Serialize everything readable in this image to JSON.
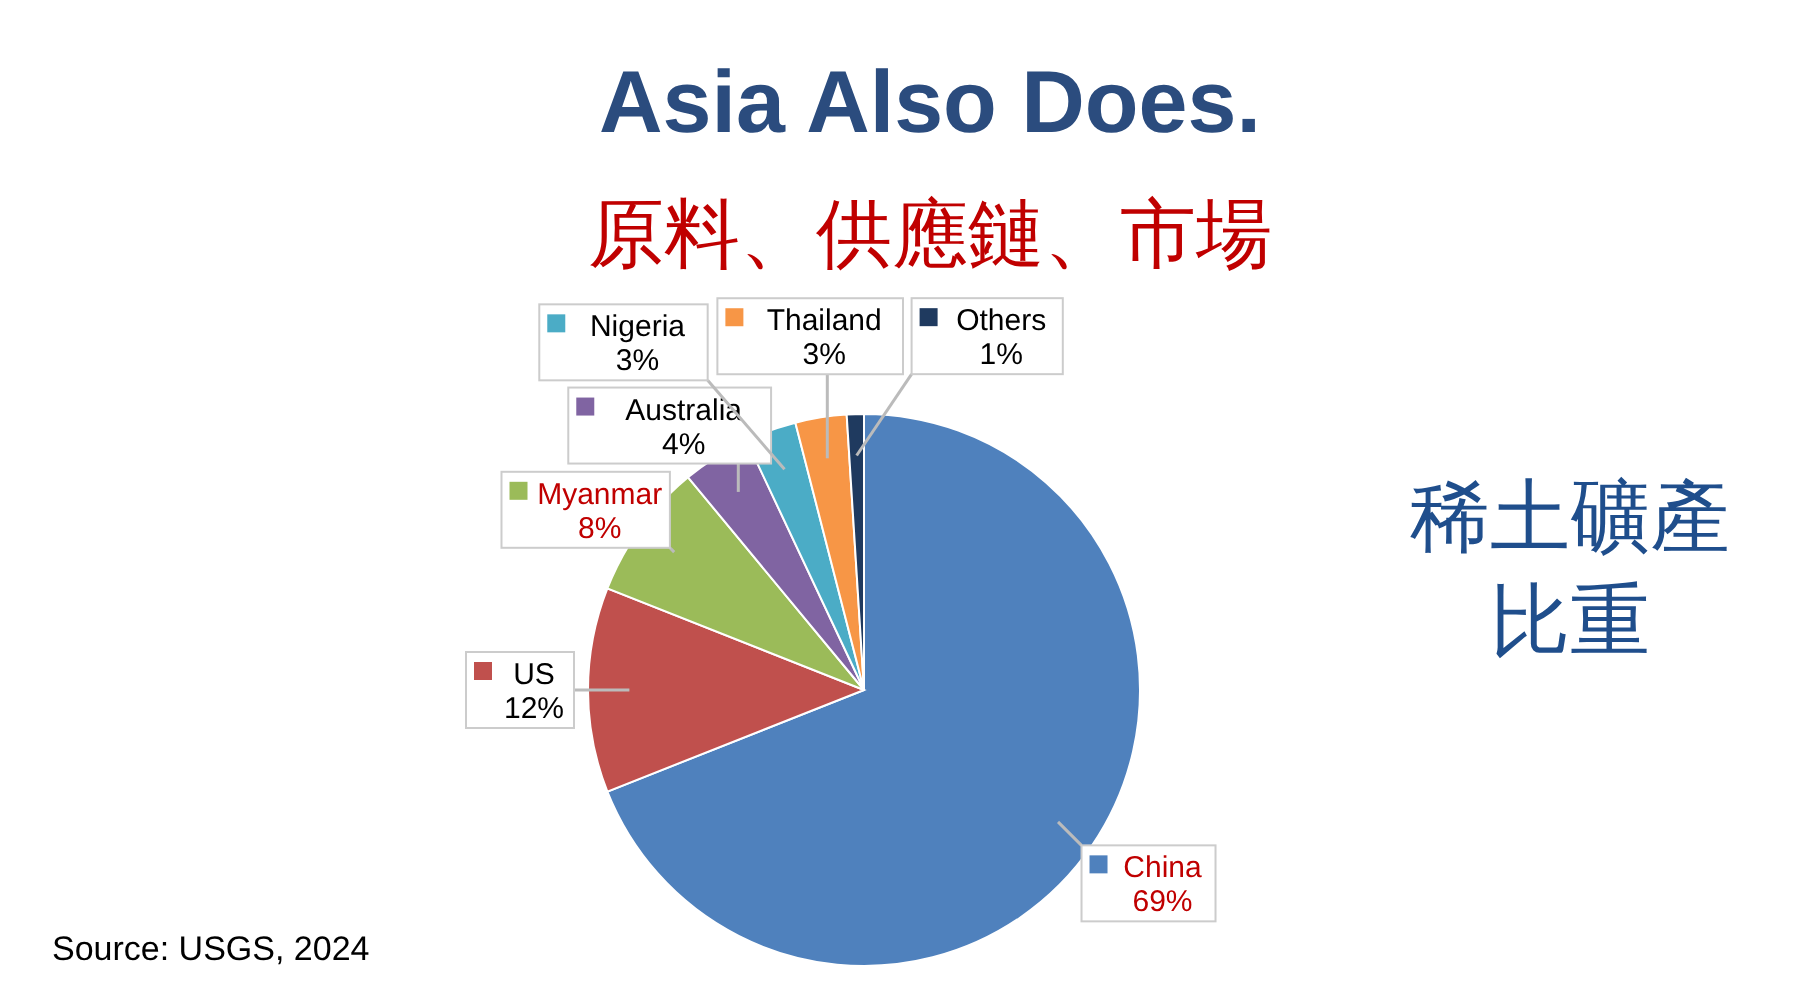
{
  "chart_data": {
    "type": "pie",
    "title": "Asia Also Does.",
    "subtitle": "原料、供應鏈、市場",
    "categories": [
      "China",
      "US",
      "Myanmar",
      "Australia",
      "Nigeria",
      "Thailand",
      "Others"
    ],
    "values": [
      69,
      12,
      8,
      4,
      3,
      3,
      1
    ],
    "colors": [
      "#4f81bd",
      "#c0504d",
      "#9bbb59",
      "#8064a2",
      "#4bacc6",
      "#f79646",
      "#1f3a5f"
    ],
    "data_labels": true,
    "legend": "left",
    "value_labels": [
      "69%",
      "12%",
      "8%",
      "4%",
      "3%",
      "3%",
      "1%"
    ],
    "annotations": [
      "稀土礦產",
      "比重",
      "Source: USGS, 2024"
    ]
  }
}
